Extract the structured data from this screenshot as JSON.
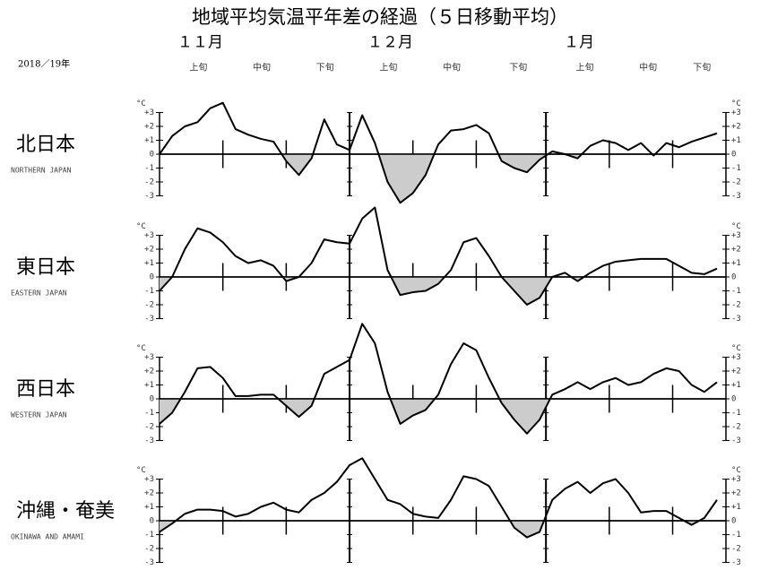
{
  "title": "地域平均気温平年差の経過（５日移動平均）",
  "period": "2018／19年",
  "months": [
    "１１月",
    "１２月",
    "１月"
  ],
  "dekads": [
    "上旬",
    "中旬",
    "下旬"
  ],
  "chart_data": [
    {
      "type": "line",
      "name": "北日本",
      "name_en": "NORTHERN JAPAN",
      "y_unit": "°C",
      "color": "#000000",
      "negative_fill": "#cccccc",
      "x": [
        1,
        3,
        5,
        7,
        9,
        11,
        13,
        15,
        17,
        19,
        21,
        23,
        25,
        27,
        29,
        31,
        33,
        35,
        37,
        39,
        41,
        43,
        45,
        47,
        49,
        51,
        53,
        55,
        57,
        59,
        61,
        63,
        65,
        67,
        69,
        71,
        73,
        75,
        77,
        79,
        81,
        83,
        85,
        87,
        89
      ],
      "values": [
        0,
        1.3,
        2.0,
        2.3,
        3.3,
        3.7,
        1.8,
        1.4,
        1.1,
        0.9,
        -0.5,
        -1.5,
        -0.3,
        2.5,
        0.7,
        0.3,
        2.8,
        0.8,
        -2.0,
        -3.5,
        -2.8,
        -1.5,
        0.7,
        1.7,
        1.8,
        2.1,
        1.5,
        -0.5,
        -1.0,
        -1.3,
        -0.4,
        0.2,
        0,
        -0.3,
        0.6,
        1.0,
        0.8,
        0.3,
        0.8,
        -0.1,
        0.8,
        0.5,
        0.9,
        1.2,
        1.5
      ],
      "xlim": [
        1,
        89
      ],
      "xticks": [
        1,
        11,
        21,
        31,
        41,
        51,
        62,
        72,
        82
      ],
      "ylim": [
        -3,
        3
      ],
      "yticks": [
        {
          "value": 3,
          "label": "+3"
        },
        {
          "value": 2,
          "label": "+2"
        },
        {
          "value": 1,
          "label": "+1"
        },
        0,
        -1,
        -2,
        -3
      ]
    },
    {
      "type": "line",
      "name": "東日本",
      "name_en": "EASTERN JAPAN",
      "y_unit": "°C",
      "color": "#000000",
      "negative_fill": "#cccccc",
      "x": [
        1,
        3,
        5,
        7,
        9,
        11,
        13,
        15,
        17,
        19,
        21,
        23,
        25,
        27,
        29,
        31,
        33,
        35,
        37,
        39,
        41,
        43,
        45,
        47,
        49,
        51,
        53,
        55,
        57,
        59,
        61,
        63,
        65,
        67,
        69,
        71,
        73,
        75,
        77,
        79,
        81,
        83,
        85,
        87,
        89
      ],
      "values": [
        -1.0,
        0,
        2.0,
        3.5,
        3.2,
        2.5,
        1.5,
        1.0,
        1.2,
        0.8,
        -0.3,
        0,
        1.0,
        2.7,
        2.5,
        2.4,
        4.2,
        5.0,
        0.5,
        -1.3,
        -1.1,
        -1.0,
        -0.5,
        0.5,
        2.5,
        2.8,
        1.5,
        0,
        -1.0,
        -2.0,
        -1.5,
        0,
        0.3,
        -0.3,
        0.3,
        0.8,
        1.1,
        1.2,
        1.3,
        1.3,
        1.3,
        0.8,
        0.3,
        0.2,
        0.6
      ],
      "xlim": [
        1,
        89
      ],
      "xticks": [
        1,
        11,
        21,
        31,
        41,
        51,
        62,
        72,
        82
      ],
      "ylim": [
        -3,
        3
      ],
      "yticks": [
        {
          "value": 3,
          "label": "+3"
        },
        {
          "value": 2,
          "label": "+2"
        },
        {
          "value": 1,
          "label": "+1"
        },
        0,
        -1,
        -2,
        -3
      ]
    },
    {
      "type": "line",
      "name": "西日本",
      "name_en": "WESTERN JAPAN",
      "y_unit": "°C",
      "color": "#000000",
      "negative_fill": "#cccccc",
      "x": [
        1,
        3,
        5,
        7,
        9,
        11,
        13,
        15,
        17,
        19,
        21,
        23,
        25,
        27,
        29,
        31,
        33,
        35,
        37,
        39,
        41,
        43,
        45,
        47,
        49,
        51,
        53,
        55,
        57,
        59,
        61,
        63,
        65,
        67,
        69,
        71,
        73,
        75,
        77,
        79,
        81,
        83,
        85,
        87,
        89
      ],
      "values": [
        -1.8,
        -1.0,
        0.5,
        2.2,
        2.3,
        1.5,
        0.2,
        0.2,
        0.3,
        0.3,
        -0.5,
        -1.3,
        -0.5,
        1.8,
        2.3,
        2.8,
        5.4,
        4.0,
        0.5,
        -1.8,
        -1.2,
        -0.8,
        0.3,
        2.5,
        4.0,
        3.5,
        1.5,
        -0.3,
        -1.5,
        -2.5,
        -1.5,
        0.3,
        0.7,
        1.2,
        0.7,
        1.2,
        1.5,
        1.0,
        1.2,
        1.8,
        2.2,
        2.0,
        1.0,
        0.5,
        1.2
      ],
      "xlim": [
        1,
        89
      ],
      "xticks": [
        1,
        11,
        21,
        31,
        41,
        51,
        62,
        72,
        82
      ],
      "ylim": [
        -3,
        3
      ],
      "yticks": [
        {
          "value": 3,
          "label": "+3"
        },
        {
          "value": 2,
          "label": "+2"
        },
        {
          "value": 1,
          "label": "+1"
        },
        0,
        -1,
        -2,
        -3
      ]
    },
    {
      "type": "line",
      "name": "沖縄・奄美",
      "name_en": "OKINAWA AND AMAMI",
      "y_unit": "°C",
      "color": "#000000",
      "negative_fill": "#cccccc",
      "x": [
        1,
        3,
        5,
        7,
        9,
        11,
        13,
        15,
        17,
        19,
        21,
        23,
        25,
        27,
        29,
        31,
        33,
        35,
        37,
        39,
        41,
        43,
        45,
        47,
        49,
        51,
        53,
        55,
        57,
        59,
        61,
        63,
        65,
        67,
        69,
        71,
        73,
        75,
        77,
        79,
        81,
        83,
        85,
        87,
        89
      ],
      "values": [
        -0.8,
        -0.2,
        0.5,
        0.8,
        0.8,
        0.7,
        0.3,
        0.5,
        1.0,
        1.3,
        0.8,
        0.6,
        1.5,
        2.0,
        2.8,
        4.0,
        4.5,
        3.0,
        1.5,
        1.2,
        0.5,
        0.3,
        0.2,
        1.5,
        3.2,
        3.0,
        2.5,
        1.0,
        -0.5,
        -1.2,
        -0.8,
        1.5,
        2.3,
        2.8,
        2.0,
        2.7,
        3.0,
        2.0,
        0.6,
        0.7,
        0.7,
        0.2,
        -0.3,
        0.2,
        1.5
      ],
      "xlim": [
        1,
        89
      ],
      "xticks": [
        1,
        11,
        21,
        31,
        41,
        51,
        62,
        72,
        82
      ],
      "ylim": [
        -3,
        3
      ],
      "yticks": [
        {
          "value": 3,
          "label": "+3"
        },
        {
          "value": 2,
          "label": "+2"
        },
        {
          "value": 1,
          "label": "+1"
        },
        0,
        -1,
        -2,
        -3
      ]
    }
  ]
}
